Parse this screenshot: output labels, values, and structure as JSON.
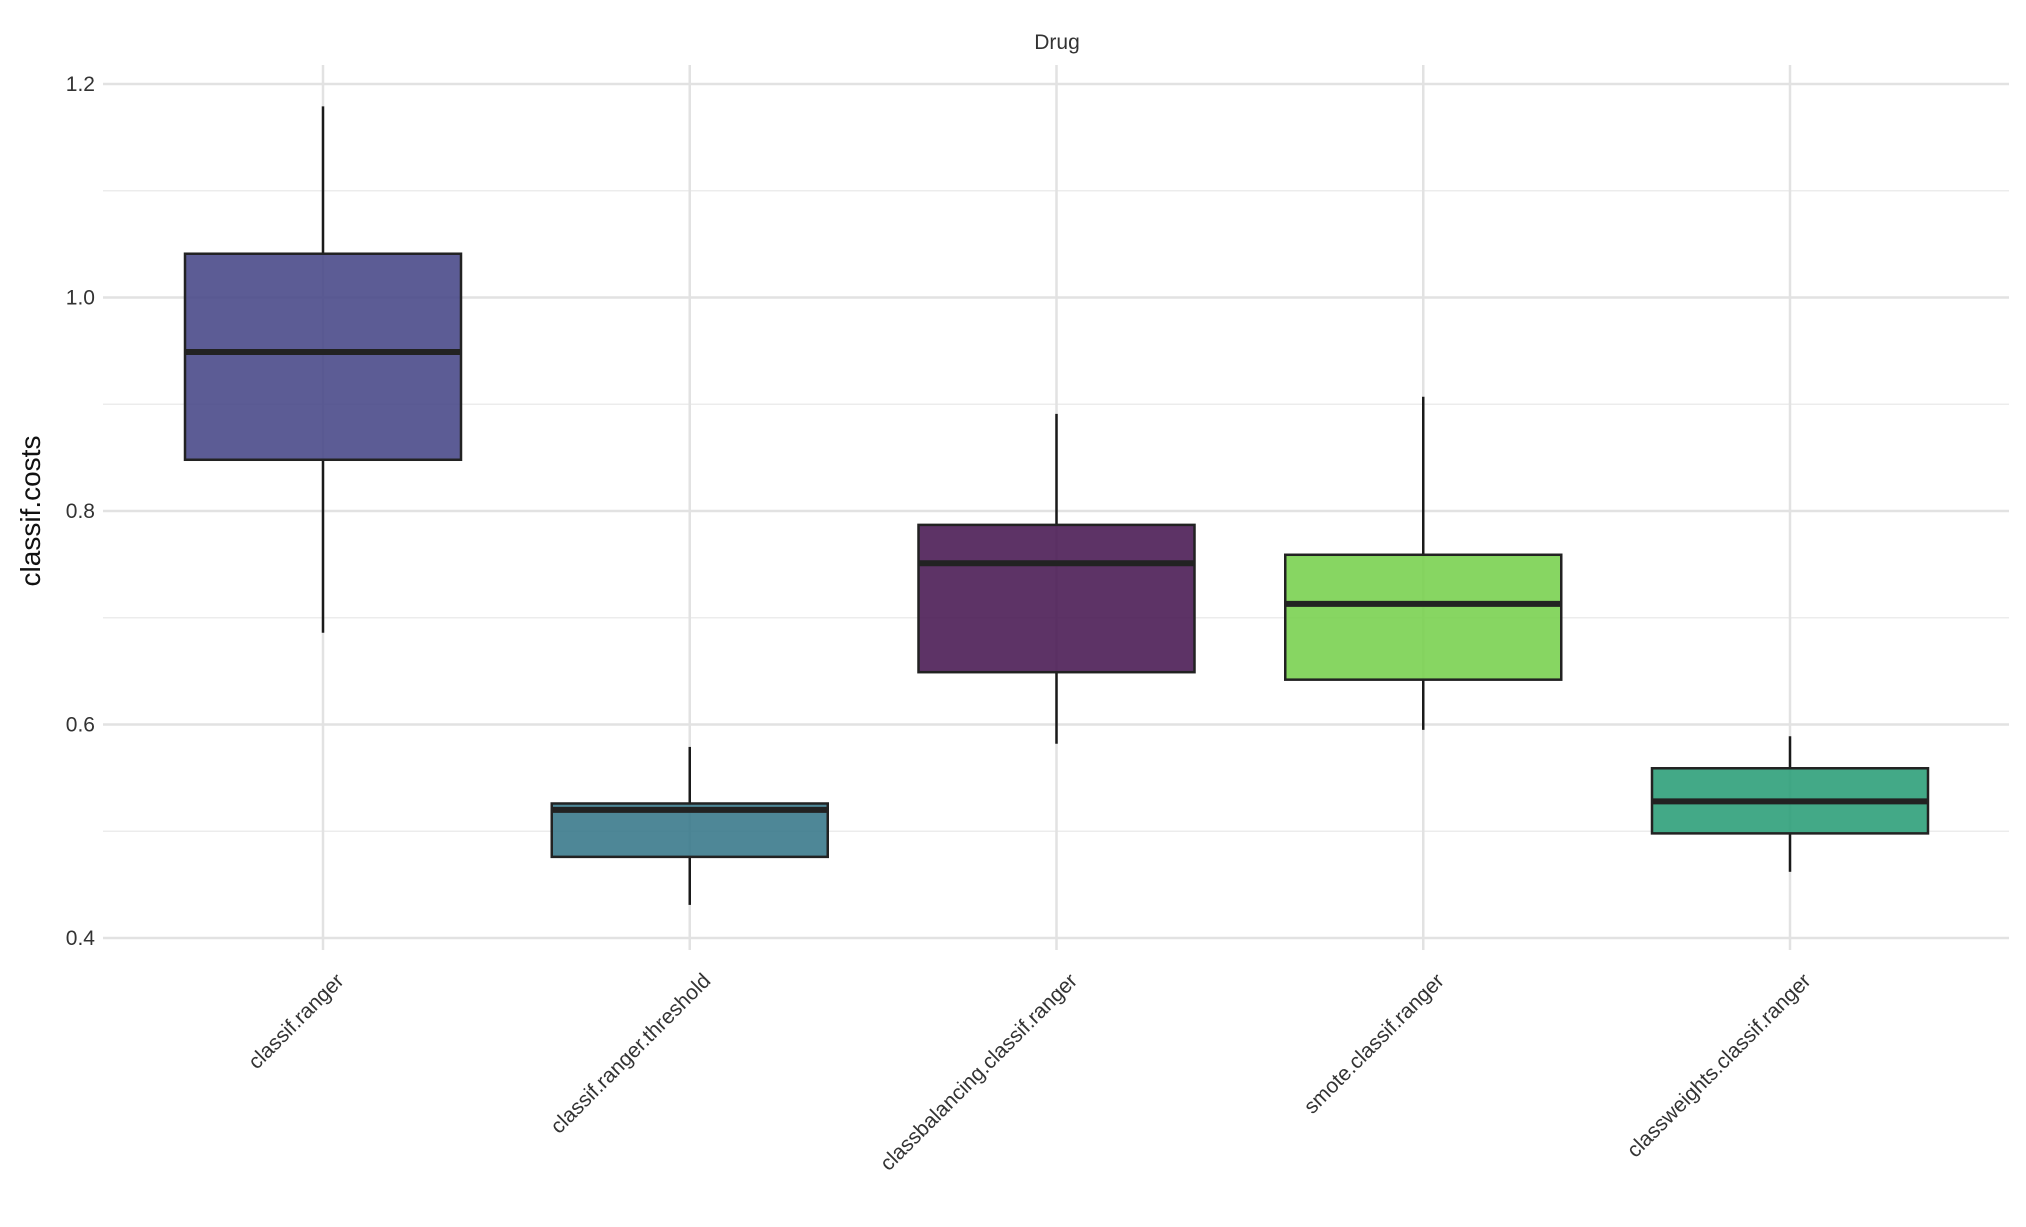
{
  "chart_data": {
    "type": "box",
    "title": "Drug",
    "xlabel": "",
    "ylabel": "classif.costs",
    "ylim": [
      0.4,
      1.2
    ],
    "yticks": [
      "0.4",
      "0.6",
      "0.8",
      "1.0",
      "1.2"
    ],
    "ytick_values": [
      0.4,
      0.6,
      0.8,
      1.0,
      1.2
    ],
    "grid": true,
    "categories": [
      "classif.ranger",
      "classif.ranger.threshold",
      "classbalancing.classif.ranger",
      "smote.classif.ranger",
      "classweights.classif.ranger"
    ],
    "boxes": [
      {
        "name": "classif.ranger",
        "whisker_low": 0.686,
        "q1": 0.848,
        "median": 0.949,
        "q3": 1.041,
        "whisker_high": 1.179,
        "color": "#4a4a8a"
      },
      {
        "name": "classif.ranger.threshold",
        "whisker_low": 0.431,
        "q1": 0.476,
        "median": 0.52,
        "q3": 0.526,
        "whisker_high": 0.579,
        "color": "#3b7a8c"
      },
      {
        "name": "classbalancing.classif.ranger",
        "whisker_low": 0.582,
        "q1": 0.649,
        "median": 0.751,
        "q3": 0.787,
        "whisker_high": 0.891,
        "color": "#4b1d55"
      },
      {
        "name": "smote.classif.ranger",
        "whisker_low": 0.595,
        "q1": 0.642,
        "median": 0.713,
        "q3": 0.759,
        "whisker_high": 0.907,
        "color": "#7ad151"
      },
      {
        "name": "classweights.classif.ranger",
        "whisker_low": 0.462,
        "q1": 0.498,
        "median": 0.528,
        "q3": 0.559,
        "whisker_high": 0.589,
        "color": "#2fa07a"
      }
    ]
  }
}
